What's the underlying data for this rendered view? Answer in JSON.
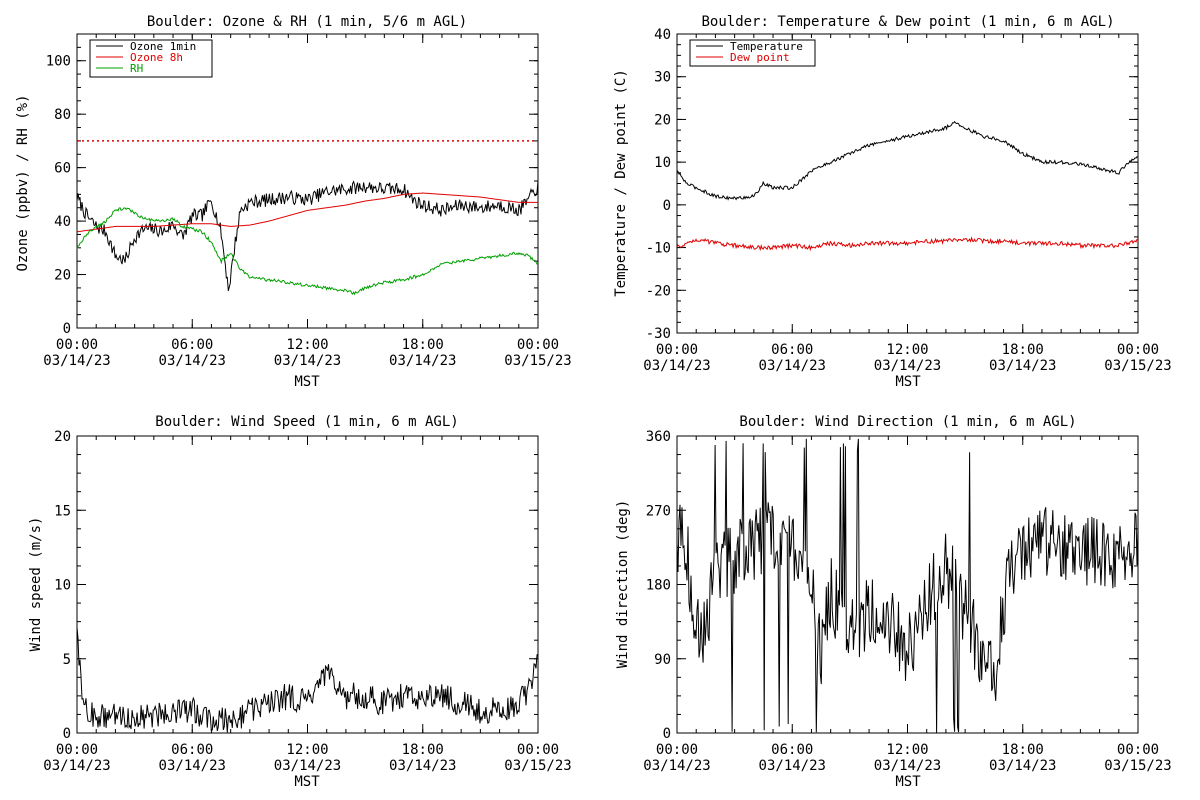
{
  "colors": {
    "black": "#000000",
    "red": "#e00000",
    "green": "#00a000",
    "background": "#ffffff"
  },
  "x_axis": {
    "label": "MST",
    "ticks": [
      {
        "time": "00:00",
        "date": "03/14/23"
      },
      {
        "time": "06:00",
        "date": "03/14/23"
      },
      {
        "time": "12:00",
        "date": "03/14/23"
      },
      {
        "time": "18:00",
        "date": "03/14/23"
      },
      {
        "time": "00:00",
        "date": "03/15/23"
      }
    ]
  },
  "chart_data": [
    {
      "type": "line",
      "title": "Boulder: Ozone & RH (1 min, 5/6 m AGL)",
      "xlabel": "MST",
      "ylabel": "Ozone (ppbv) / RH (%)",
      "xlim": [
        "2023-03-14 00:00",
        "2023-03-15 00:00"
      ],
      "ylim": [
        0,
        110
      ],
      "yticks": [
        0,
        20,
        40,
        60,
        80,
        100
      ],
      "legend_position": "top-left",
      "reference_lines": [
        {
          "y": 70,
          "color": "#e00000",
          "style": "dotted"
        }
      ],
      "series": [
        {
          "name": "Ozone 1min",
          "color": "#000000",
          "noise": 2.5,
          "x": [
            0,
            0.5,
            1,
            1.5,
            2,
            2.5,
            3,
            3.5,
            4,
            4.5,
            5,
            5.5,
            6,
            6.5,
            7,
            7.5,
            7.9,
            8.2,
            8.5,
            9,
            10,
            11,
            12,
            13,
            14,
            15,
            16,
            17,
            17.5,
            18,
            19,
            20,
            21,
            22,
            23,
            23.5,
            24
          ],
          "y": [
            49,
            42,
            38,
            36,
            27,
            25,
            34,
            37,
            37,
            36,
            39,
            34,
            42,
            42,
            48,
            36,
            14,
            30,
            44,
            47,
            48,
            49,
            48,
            51,
            52,
            53,
            52,
            52,
            48,
            46,
            44,
            46,
            45,
            46,
            44,
            48,
            53
          ]
        },
        {
          "name": "Ozone 8h",
          "color": "#e00000",
          "noise": 0,
          "x": [
            0,
            1,
            2,
            3,
            4,
            5,
            6,
            7,
            8,
            9,
            10,
            11,
            12,
            13,
            14,
            15,
            16,
            17,
            18,
            19,
            20,
            21,
            22,
            23,
            24
          ],
          "y": [
            36,
            37,
            38,
            38,
            38,
            38.5,
            39,
            39,
            38,
            38.5,
            40,
            42,
            44,
            45,
            46,
            47.5,
            48.5,
            50,
            50.5,
            50,
            49.5,
            49,
            48,
            47,
            47
          ]
        },
        {
          "name": "RH",
          "color": "#00a000",
          "noise": 0.6,
          "x": [
            0,
            0.5,
            1,
            1.5,
            2,
            2.5,
            3,
            3.5,
            4,
            4.5,
            5,
            5.5,
            6,
            6.5,
            7,
            7.5,
            8,
            8.5,
            9,
            10,
            11,
            12,
            13,
            14,
            14.5,
            15,
            16,
            17,
            18,
            19,
            20,
            21,
            22,
            23,
            23.5,
            24
          ],
          "y": [
            30,
            35,
            38,
            40,
            44,
            45,
            43,
            41,
            40,
            40,
            41,
            38,
            37,
            36,
            32,
            25,
            28,
            22,
            19,
            18,
            17,
            16,
            15,
            14,
            13,
            15,
            17,
            18,
            20,
            24,
            25,
            26,
            27,
            28,
            27,
            24
          ]
        }
      ]
    },
    {
      "type": "line",
      "title": "Boulder: Temperature & Dew point (1 min, 6 m AGL)",
      "xlabel": "MST",
      "ylabel": "Temperature / Dew point (C)",
      "xlim": [
        "2023-03-14 00:00",
        "2023-03-15 00:00"
      ],
      "ylim": [
        -30,
        40
      ],
      "yticks": [
        -30,
        -20,
        -10,
        0,
        10,
        20,
        30,
        40
      ],
      "legend_position": "top-left",
      "series": [
        {
          "name": "Temperature",
          "color": "#000000",
          "noise": 0.4,
          "x": [
            0,
            0.5,
            1,
            2,
            3,
            4,
            4.5,
            5,
            5.5,
            6,
            7,
            8,
            9,
            10,
            11,
            12,
            13,
            14,
            14.5,
            15,
            16,
            17,
            18,
            19,
            20,
            21,
            22,
            23,
            23.5,
            24
          ],
          "y": [
            8,
            5,
            4,
            2,
            1.5,
            2,
            5,
            4,
            4,
            4,
            8,
            10,
            12,
            14,
            15,
            16,
            17,
            18,
            19.5,
            18,
            16,
            15,
            12,
            10,
            10,
            9.5,
            8.5,
            7.5,
            10,
            11
          ]
        },
        {
          "name": "Dew point",
          "color": "#e00000",
          "noise": 0.5,
          "x": [
            0,
            1,
            2,
            3,
            4,
            5,
            6,
            7,
            8,
            9,
            10,
            11,
            12,
            13,
            14,
            15,
            16,
            17,
            18,
            19,
            20,
            21,
            22,
            23,
            24
          ],
          "y": [
            -10,
            -8,
            -9,
            -9.5,
            -10,
            -10,
            -9.5,
            -10,
            -9,
            -9.5,
            -9,
            -9,
            -9,
            -8.5,
            -8.5,
            -8,
            -8.5,
            -8.5,
            -9,
            -9,
            -9,
            -9.5,
            -9.5,
            -9.5,
            -8.5
          ]
        }
      ]
    },
    {
      "type": "line",
      "title": "Boulder: Wind Speed (1 min, 6 m AGL)",
      "xlabel": "MST",
      "ylabel": "Wind speed (m/s)",
      "xlim": [
        "2023-03-14 00:00",
        "2023-03-15 00:00"
      ],
      "ylim": [
        0,
        20
      ],
      "yticks": [
        0,
        5,
        10,
        15,
        20
      ],
      "series": [
        {
          "name": "",
          "color": "#000000",
          "noise": 0.9,
          "x": [
            0,
            0.2,
            0.5,
            1,
            2,
            3,
            4,
            5,
            6,
            7,
            8,
            9,
            10,
            11,
            12,
            12.5,
            13,
            13.5,
            14,
            15,
            16,
            17,
            18,
            19,
            20,
            21,
            22,
            23,
            23.5,
            24
          ],
          "y": [
            8,
            3,
            1.5,
            1,
            1.2,
            1,
            1.2,
            1.5,
            1.5,
            1,
            0.8,
            1.5,
            2,
            2.5,
            2,
            3,
            4,
            3,
            2.5,
            2.5,
            2,
            2.5,
            2.5,
            2.5,
            2,
            1.5,
            1.5,
            2,
            3,
            5
          ]
        }
      ]
    },
    {
      "type": "line",
      "title": "Boulder: Wind Direction (1 min, 6 m AGL)",
      "xlabel": "MST",
      "ylabel": "Wind direction (deg)",
      "xlim": [
        "2023-03-14 00:00",
        "2023-03-15 00:00"
      ],
      "ylim": [
        0,
        360
      ],
      "yticks": [
        0,
        90,
        180,
        270,
        360
      ],
      "series": [
        {
          "name": "",
          "color": "#000000",
          "noise": 45,
          "x": [
            0,
            0.5,
            1,
            1.5,
            2,
            3,
            4,
            5,
            6,
            7,
            7.5,
            8,
            9,
            10,
            11,
            12,
            13,
            14,
            15,
            16,
            16.5,
            17,
            17.5,
            18,
            19,
            20,
            21,
            22,
            23,
            24
          ],
          "y": [
            240,
            220,
            140,
            120,
            200,
            210,
            230,
            240,
            230,
            180,
            90,
            170,
            120,
            150,
            140,
            100,
            160,
            200,
            150,
            80,
            60,
            150,
            210,
            230,
            230,
            230,
            220,
            220,
            210,
            230
          ]
        }
      ]
    }
  ]
}
